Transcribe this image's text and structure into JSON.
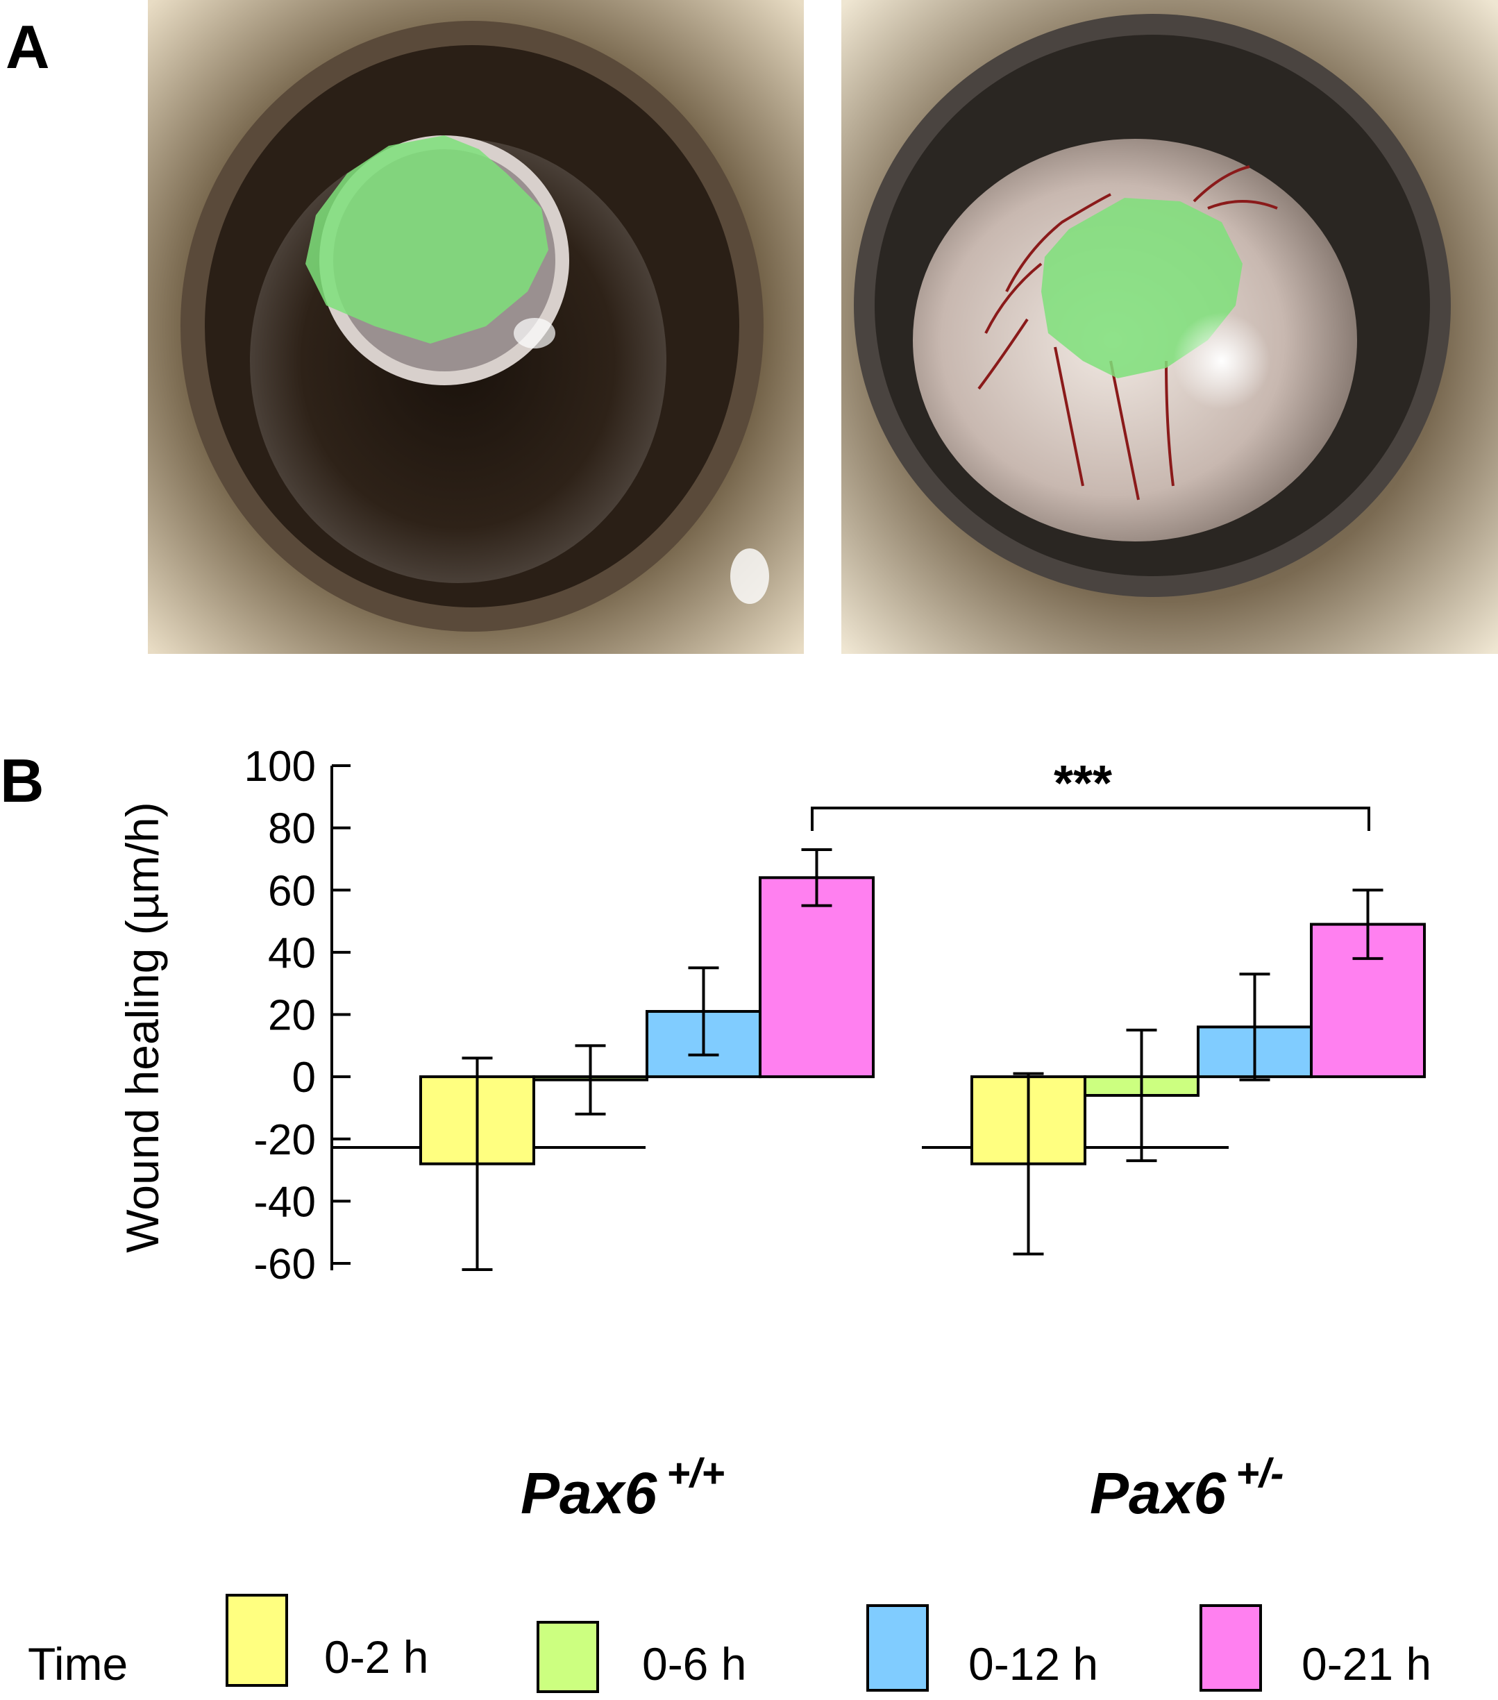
{
  "figure": {
    "panel_a_label": "A",
    "panel_b_label": "B",
    "colors": {
      "wound_overlay": "#7ee07a",
      "vessel": "#8a1a1a",
      "bar_0_2": "#ffff80",
      "bar_0_6": "#ccff80",
      "bar_0_12": "#80ccff",
      "bar_0_21": "#ff80f0"
    }
  },
  "chart_data": {
    "type": "bar",
    "ylabel": "Wound healing (µm/h)",
    "ylim": [
      -60,
      100
    ],
    "yticks": [
      "100",
      "80",
      "60",
      "40",
      "20",
      "0",
      "-20",
      "-40",
      "-60"
    ],
    "ytick_values": [
      100,
      80,
      60,
      40,
      20,
      0,
      -20,
      -40,
      -60
    ],
    "groups": [
      {
        "name": "Pax6",
        "superscript": "+/+"
      },
      {
        "name": "Pax6",
        "superscript": "+/-"
      }
    ],
    "legend_title": "Time",
    "series": [
      {
        "name": "0-2 h",
        "color": "#ffff80",
        "values": [
          -28,
          -28
        ],
        "errors": [
          34,
          29
        ]
      },
      {
        "name": "0-6 h",
        "color": "#ccff80",
        "values": [
          -1,
          -6
        ],
        "errors": [
          11,
          21
        ]
      },
      {
        "name": "0-12 h",
        "color": "#80ccff",
        "values": [
          21,
          16
        ],
        "errors": [
          14,
          17
        ]
      },
      {
        "name": "0-21 h",
        "color": "#ff80f0",
        "values": [
          64,
          49
        ],
        "errors": [
          9,
          11
        ]
      }
    ],
    "significance": {
      "label": "***",
      "between": "0-21 h"
    },
    "legend_position": "bottom"
  }
}
